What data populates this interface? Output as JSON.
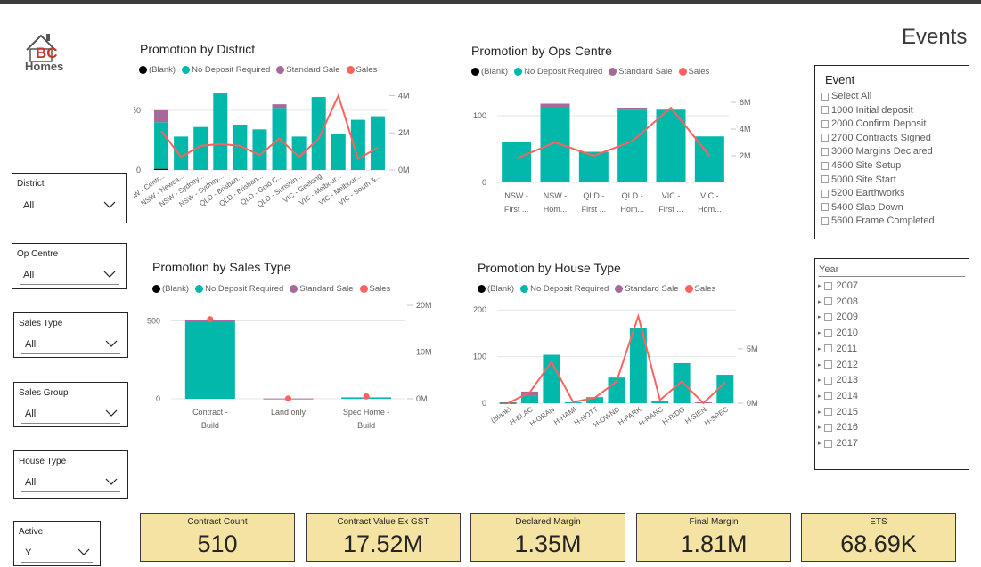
{
  "logo": {
    "letters": "BC",
    "word": "Homes"
  },
  "events_title": "Events",
  "legend": {
    "items": [
      {
        "label": "(Blank)",
        "color": "#000000"
      },
      {
        "label": "No Deposit Required",
        "color": "#01b8aa"
      },
      {
        "label": "Standard Sale",
        "color": "#a66999"
      },
      {
        "label": "Sales",
        "color": "#fd625e"
      }
    ]
  },
  "charts": {
    "district": {
      "title": "Promotion by District",
      "y_ticks": [
        "0",
        "50"
      ],
      "y2_ticks": [
        "0M",
        "2M",
        "4M"
      ],
      "x_labels": [
        "NSW - Centr...",
        "NSW - Newca...",
        "NSW - Sydney...",
        "NSW - Sydney...",
        "QLD - Brisban...",
        "QLD - Brisban...",
        "QLD - Gold C...",
        "QLD - Sunshin...",
        "VIC - Geelong",
        "VIC - Melbour...",
        "VIC - Melbour...",
        "VIC - South &..."
      ]
    },
    "ops": {
      "title": "Promotion by Ops Centre",
      "y_ticks": [
        "0",
        "100"
      ],
      "y2_ticks": [
        "2M",
        "4M",
        "6M"
      ],
      "x_labels": [
        [
          "NSW -",
          "First ..."
        ],
        [
          "NSW -",
          "Hom..."
        ],
        [
          "QLD -",
          "First ..."
        ],
        [
          "QLD -",
          "Hom..."
        ],
        [
          "VIC -",
          "First ..."
        ],
        [
          "VIC -",
          "Hom..."
        ]
      ]
    },
    "sales_type": {
      "title": "Promotion by Sales Type",
      "y_ticks": [
        "0",
        "500"
      ],
      "y2_ticks": [
        "0M",
        "10M",
        "20M"
      ],
      "x_labels": [
        [
          "Contract -",
          "Build"
        ],
        [
          "Land only",
          ""
        ],
        [
          "Spec Home -",
          "Build"
        ]
      ]
    },
    "house": {
      "title": "Promotion by House Type",
      "y_ticks": [
        "0",
        "100",
        "200"
      ],
      "y2_ticks": [
        "0M",
        "5M"
      ],
      "x_labels": [
        "(Blank)",
        "H-BLAC",
        "H-GRAN",
        "H-HAMI",
        "H-NOTT",
        "H-OWND",
        "H-PARK",
        "H-RANC",
        "H-RIDG",
        "H-SIEN",
        "H-SPEC"
      ]
    }
  },
  "chart_data": [
    {
      "type": "bar",
      "title": "Promotion by District",
      "categories": [
        "NSW - Centr...",
        "NSW - Newca...",
        "NSW - Sydney...",
        "NSW - Sydney...",
        "QLD - Brisban...",
        "QLD - Brisban...",
        "QLD - Gold C...",
        "QLD - Sunshin...",
        "VIC - Geelong",
        "VIC - Melbour...",
        "VIC - Melbour...",
        "VIC - South &..."
      ],
      "series": [
        {
          "name": "(Blank)",
          "values": [
            1,
            0,
            0,
            0,
            0,
            0,
            0,
            0,
            0,
            0,
            0,
            0
          ]
        },
        {
          "name": "No Deposit Required",
          "values": [
            39,
            28,
            36,
            64,
            38,
            34,
            52,
            28,
            61,
            30,
            42,
            45
          ]
        },
        {
          "name": "Standard Sale",
          "values": [
            10,
            0,
            0,
            0,
            0,
            0,
            3,
            0,
            0,
            0,
            0,
            0
          ]
        },
        {
          "name": "Sales",
          "values": [
            2.1,
            0.7,
            1.3,
            1.4,
            1.3,
            0.8,
            1.7,
            0.7,
            1.7,
            4.0,
            0.6,
            1.2
          ]
        }
      ],
      "ylim": [
        0,
        70
      ],
      "y2lim": [
        0,
        4.5
      ]
    },
    {
      "type": "bar",
      "title": "Promotion by Ops Centre",
      "categories": [
        "NSW - First ...",
        "NSW - Hom...",
        "QLD - First ...",
        "QLD - Hom...",
        "VIC - First ...",
        "VIC - Hom..."
      ],
      "series": [
        {
          "name": "(Blank)",
          "values": [
            0,
            0,
            0,
            0,
            0,
            0
          ]
        },
        {
          "name": "No Deposit Required",
          "values": [
            61,
            112,
            46,
            109,
            109,
            69
          ]
        },
        {
          "name": "Standard Sale",
          "values": [
            0,
            6,
            0,
            3,
            0,
            0
          ]
        },
        {
          "name": "Sales",
          "values": [
            1.8,
            3.0,
            2.0,
            3.1,
            5.6,
            2.0
          ]
        }
      ],
      "ylim": [
        0,
        140
      ],
      "y2lim": [
        0,
        7
      ]
    },
    {
      "type": "bar",
      "title": "Promotion by Sales Type",
      "categories": [
        "Contract - Build",
        "Land only",
        "Spec Home - Build"
      ],
      "series": [
        {
          "name": "(Blank)",
          "values": [
            0,
            0,
            0
          ]
        },
        {
          "name": "No Deposit Required",
          "values": [
            497,
            0,
            9
          ]
        },
        {
          "name": "Standard Sale",
          "values": [
            6,
            2,
            0
          ]
        },
        {
          "name": "Sales",
          "values": [
            17.0,
            0.05,
            0.5
          ]
        }
      ],
      "ylim": [
        0,
        600
      ],
      "y2lim": [
        0,
        20
      ]
    },
    {
      "type": "bar",
      "title": "Promotion by House Type",
      "categories": [
        "(Blank)",
        "H-BLAC",
        "H-GRAN",
        "H-HAMI",
        "H-NOTT",
        "H-OWND",
        "H-PARK",
        "H-RANC",
        "H-RIDG",
        "H-SIEN",
        "H-SPEC"
      ],
      "series": [
        {
          "name": "(Blank)",
          "values": [
            1,
            0,
            0,
            0,
            0,
            0,
            0,
            0,
            0,
            0,
            0
          ]
        },
        {
          "name": "No Deposit Required",
          "values": [
            0,
            17,
            104,
            2,
            13,
            55,
            162,
            5,
            86,
            0,
            61
          ]
        },
        {
          "name": "Standard Sale",
          "values": [
            0,
            8,
            0,
            0,
            0,
            0,
            0,
            0,
            0,
            0,
            0
          ]
        },
        {
          "name": "Sales",
          "values": [
            0.0,
            1.0,
            3.8,
            0.1,
            0.5,
            2.0,
            8.0,
            0.3,
            2.0,
            0.0,
            1.9
          ]
        }
      ],
      "ylim": [
        0,
        210
      ],
      "y2lim": [
        0,
        9
      ]
    }
  ],
  "slicers": [
    {
      "label": "District",
      "value": "All"
    },
    {
      "label": "Op Centre",
      "value": "All"
    },
    {
      "label": "Sales Type",
      "value": "All"
    },
    {
      "label": "Sales Group",
      "value": "All"
    },
    {
      "label": "House Type",
      "value": "All"
    },
    {
      "label": "Active",
      "value": "Y"
    }
  ],
  "event_slicer": {
    "title": "Event",
    "items": [
      "Select All",
      "1000 Initial deposit",
      "2000 Confirm Deposit",
      "2700 Contracts Signed",
      "3000 Margins Declared",
      "4600 Site Setup",
      "5000 Site Start",
      "5200 Earthworks",
      "5400 Slab Down",
      "5600 Frame Completed"
    ]
  },
  "year_slicer": {
    "title": "Year",
    "items": [
      "2007",
      "2008",
      "2009",
      "2010",
      "2011",
      "2012",
      "2013",
      "2014",
      "2015",
      "2016",
      "2017"
    ]
  },
  "cards": [
    {
      "title": "Contract Count",
      "value": "510"
    },
    {
      "title": "Contract Value Ex GST",
      "value": "17.52M"
    },
    {
      "title": "Declared Margin",
      "value": "1.35M"
    },
    {
      "title": "Final Margin",
      "value": "1.81M"
    },
    {
      "title": "ETS",
      "value": "68.69K"
    }
  ]
}
